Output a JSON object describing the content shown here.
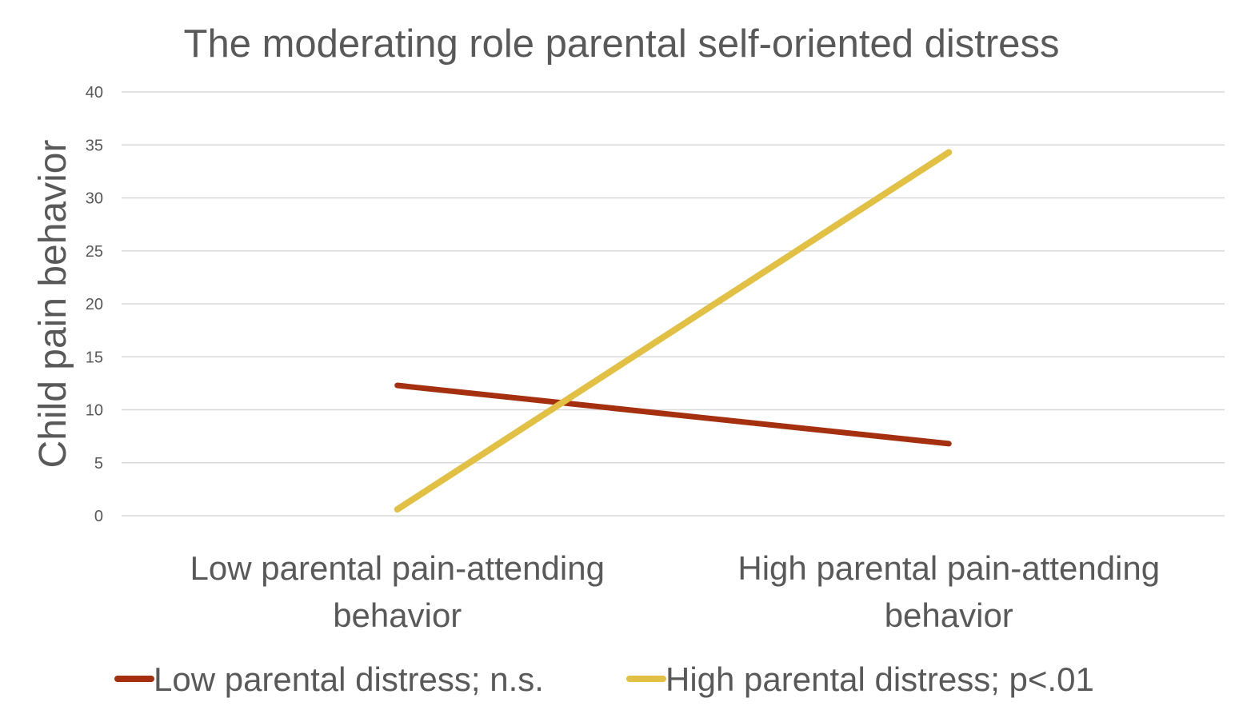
{
  "chart_data": {
    "type": "line",
    "title": "The moderating role parental self-oriented distress",
    "xlabel": "",
    "ylabel": "Child pain behavior",
    "categories": [
      [
        "Low parental pain-attending",
        "behavior"
      ],
      [
        "High parental pain-attending",
        "behavior"
      ]
    ],
    "ylim": [
      0,
      40
    ],
    "yticks": [
      0,
      5,
      10,
      15,
      20,
      25,
      30,
      35,
      40
    ],
    "grid": true,
    "legend_position": "bottom",
    "series": [
      {
        "name": "Low parental distress; n.s.",
        "color": "#a5300f",
        "values": [
          12.3,
          6.8
        ]
      },
      {
        "name": "High parental distress; p<.01",
        "color": "#e2c044",
        "values": [
          0.6,
          34.3
        ]
      }
    ]
  }
}
